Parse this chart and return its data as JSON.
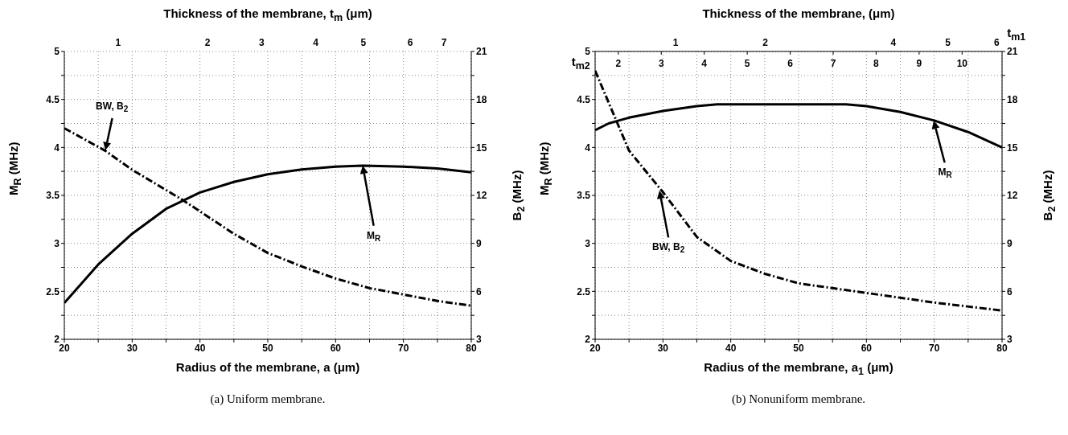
{
  "chart_data": [
    {
      "type": "line",
      "title": "(a) Uniform membrane.",
      "xlabel": "Radius of the membrane, a (μm)",
      "ylabel": "M$_{R}$ (MHz)",
      "y2label": "B$_{2}$ (MHz)",
      "x2label": "Thickness of the membrane, t$_{m}$ (μm)",
      "xlim": [
        20,
        80
      ],
      "xticks": [
        20,
        {
          "value": 25,
          "label": null
        },
        30,
        {
          "value": 35,
          "label": null
        },
        40,
        {
          "value": 45,
          "label": null
        },
        50,
        {
          "value": 55,
          "label": null
        },
        60,
        {
          "value": 65,
          "label": null
        },
        70,
        {
          "value": 75,
          "label": null
        },
        80
      ],
      "ylim": [
        2,
        5
      ],
      "yticks": [
        2,
        {
          "value": 2.25,
          "label": null
        },
        2.5,
        {
          "value": 2.75,
          "label": null
        },
        3,
        {
          "value": 3.25,
          "label": null
        },
        3.5,
        {
          "value": 3.75,
          "label": null
        },
        4,
        {
          "value": 4.25,
          "label": null
        },
        4.5,
        {
          "value": 4.75,
          "label": null
        },
        5
      ],
      "y2lim": [
        3,
        21
      ],
      "y2ticks": [
        3,
        {
          "value": 4.5,
          "label": null
        },
        6,
        {
          "value": 7.5,
          "label": null
        },
        9,
        {
          "value": 10.5,
          "label": null
        },
        12,
        {
          "value": 13.5,
          "label": null
        },
        15,
        {
          "value": 16.5,
          "label": null
        },
        18,
        {
          "value": 19.5,
          "label": null
        },
        21
      ],
      "grid": true,
      "marker": "none",
      "series": [
        {
          "color": "#000000",
          "line_style": "solid",
          "x": [
            20,
            25,
            30,
            35,
            40,
            45,
            50,
            55,
            60,
            64,
            70,
            75,
            80
          ],
          "values": [
            2.38,
            2.78,
            3.1,
            3.36,
            3.53,
            3.64,
            3.72,
            3.77,
            3.8,
            3.81,
            3.8,
            3.78,
            3.74
          ]
        },
        {
          "color": "#000000",
          "line_style": "dashed",
          "axis": "y2",
          "x": [
            20,
            26,
            30,
            37.5,
            40,
            45,
            50,
            55,
            60,
            65,
            70,
            75,
            80
          ],
          "values": [
            16.2,
            14.8,
            13.6,
            11.7,
            11.0,
            9.6,
            8.4,
            7.56,
            6.8,
            6.2,
            5.8,
            5.4,
            5.1
          ]
        }
      ],
      "annotations": [
        "1",
        "2",
        "3",
        "4",
        "5",
        "6",
        "7",
        "BW, B$_{2}$",
        "M$_{R}$"
      ]
    },
    {
      "type": "line",
      "title": "(b) Nonuniform membrane.",
      "xlabel": "Radius of the membrane, a$_{1}$ (μm)",
      "ylabel": "M$_{R}$ (MHz)",
      "y2label": "B$_{2}$ (MHz)",
      "x2label": "Thickness of the membrane, (μm)",
      "xlim": [
        20,
        80
      ],
      "xticks": [
        20,
        {
          "value": 25,
          "label": null
        },
        30,
        {
          "value": 35,
          "label": null
        },
        40,
        {
          "value": 45,
          "label": null
        },
        50,
        {
          "value": 55,
          "label": null
        },
        60,
        {
          "value": 65,
          "label": null
        },
        70,
        {
          "value": 75,
          "label": null
        },
        80
      ],
      "ylim": [
        2,
        5
      ],
      "yticks": [
        2,
        {
          "value": 2.25,
          "label": null
        },
        2.5,
        {
          "value": 2.75,
          "label": null
        },
        3,
        {
          "value": 3.25,
          "label": null
        },
        3.5,
        {
          "value": 3.75,
          "label": null
        },
        4,
        {
          "value": 4.25,
          "label": null
        },
        4.5,
        {
          "value": 4.75,
          "label": null
        },
        5
      ],
      "y2lim": [
        3,
        21
      ],
      "y2ticks": [
        3,
        {
          "value": 4.5,
          "label": null
        },
        6,
        {
          "value": 7.5,
          "label": null
        },
        9,
        {
          "value": 10.5,
          "label": null
        },
        12,
        {
          "value": 13.5,
          "label": null
        },
        15,
        {
          "value": 16.5,
          "label": null
        },
        18,
        {
          "value": 19.5,
          "label": null
        },
        21
      ],
      "x2lim": [
        1.46,
        10.93
      ],
      "x2ticks": [
        2,
        3,
        4,
        5,
        6,
        7,
        8,
        9,
        10
      ],
      "grid": true,
      "marker": "none",
      "series": [
        {
          "color": "#000000",
          "line_style": "solid",
          "x": [
            20,
            22,
            25,
            30,
            35,
            38,
            45,
            50,
            57,
            60,
            65,
            70,
            75,
            80
          ],
          "values": [
            4.18,
            4.25,
            4.31,
            4.38,
            4.43,
            4.45,
            4.45,
            4.45,
            4.45,
            4.43,
            4.37,
            4.28,
            4.16,
            4.0
          ]
        },
        {
          "color": "#000000",
          "line_style": "dashed",
          "axis": "y2",
          "x": [
            20,
            25,
            30,
            35,
            40,
            45,
            50,
            55,
            60,
            70,
            80
          ],
          "values": [
            19.8,
            14.8,
            12.2,
            9.4,
            7.9,
            7.1,
            6.5,
            6.2,
            5.9,
            5.3,
            4.8
          ]
        }
      ],
      "annotations": [
        "1",
        "2",
        "4",
        "5",
        "6",
        "t$_{m1}$",
        "t$_{m2}$",
        "BW, B$_{2}$",
        "M$_{R}$"
      ]
    }
  ]
}
